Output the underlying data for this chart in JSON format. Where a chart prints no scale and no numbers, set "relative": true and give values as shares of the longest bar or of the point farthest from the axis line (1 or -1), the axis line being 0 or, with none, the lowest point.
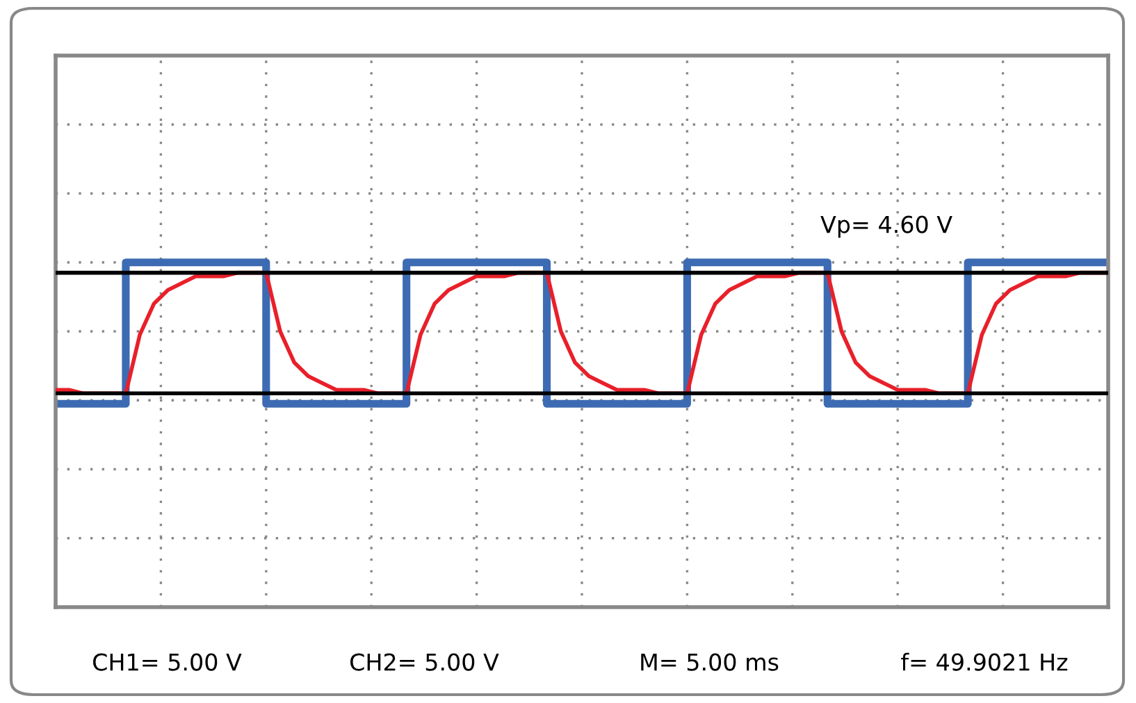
{
  "chart_data": {
    "type": "line",
    "relative": true,
    "grid": true,
    "categories": [
      null,
      null,
      null,
      null,
      null,
      null,
      null,
      null,
      null,
      null,
      null,
      null,
      null,
      null,
      null,
      null,
      null,
      null,
      null,
      null,
      null,
      null,
      null,
      null,
      null,
      null,
      null,
      null,
      null,
      null,
      null,
      null,
      null,
      null,
      null,
      null,
      null,
      null,
      null,
      null,
      null,
      null,
      null,
      null,
      null,
      null,
      null,
      null,
      null,
      null,
      null,
      null,
      null,
      null,
      null,
      null,
      null,
      null,
      null,
      null,
      null,
      null,
      null,
      null,
      null,
      null,
      null,
      null,
      null,
      null,
      null,
      null,
      null,
      null,
      null,
      null
    ],
    "series": [
      {
        "type": "step",
        "color": "#3d6bb3",
        "values": [
          0.59,
          0.59,
          0.59,
          0.59,
          0.59,
          1,
          1,
          1,
          1,
          1,
          1,
          1,
          1,
          1,
          1,
          0.59,
          0.59,
          0.59,
          0.59,
          0.59,
          0.59,
          0.59,
          0.59,
          0.59,
          0.59,
          1,
          1,
          1,
          1,
          1,
          1,
          1,
          1,
          1,
          1,
          0.59,
          0.59,
          0.59,
          0.59,
          0.59,
          0.59,
          0.59,
          0.59,
          0.59,
          0.59,
          1,
          1,
          1,
          1,
          1,
          1,
          1,
          1,
          1,
          1,
          0.59,
          0.59,
          0.59,
          0.59,
          0.59,
          0.59,
          0.59,
          0.59,
          0.59,
          0.59,
          1,
          1,
          1,
          1,
          1,
          1,
          1,
          1,
          1,
          1,
          1
        ]
      },
      {
        "type": "line",
        "color": "#e8202a",
        "values": [
          0.63,
          0.63,
          0.62,
          0.62,
          0.62,
          0.62,
          0.79,
          0.88,
          0.92,
          0.94,
          0.96,
          0.96,
          0.96,
          0.97,
          0.97,
          0.97,
          0.8,
          0.71,
          0.67,
          0.65,
          0.63,
          0.63,
          0.63,
          0.62,
          0.62,
          0.62,
          0.79,
          0.88,
          0.92,
          0.94,
          0.96,
          0.96,
          0.96,
          0.97,
          0.97,
          0.97,
          0.8,
          0.71,
          0.67,
          0.65,
          0.63,
          0.63,
          0.63,
          0.62,
          0.62,
          0.62,
          0.79,
          0.88,
          0.92,
          0.94,
          0.96,
          0.96,
          0.96,
          0.97,
          0.97,
          0.97,
          0.8,
          0.71,
          0.67,
          0.65,
          0.63,
          0.63,
          0.63,
          0.62,
          0.62,
          0.62,
          0.79,
          0.88,
          0.92,
          0.94,
          0.96,
          0.96,
          0.96,
          0.97,
          0.97,
          0.97
        ]
      },
      {
        "color": "#000000",
        "values": [
          0.97,
          0.97,
          0.97,
          0.97,
          0.97,
          0.97,
          0.97,
          0.97,
          0.97,
          0.97,
          0.97,
          0.97,
          0.97,
          0.97,
          0.97,
          0.97,
          0.97,
          0.97,
          0.97,
          0.97,
          0.97,
          0.97,
          0.97,
          0.97,
          0.97,
          0.97,
          0.97,
          0.97,
          0.97,
          0.97,
          0.97,
          0.97,
          0.97,
          0.97,
          0.97,
          0.97,
          0.97,
          0.97,
          0.97,
          0.97,
          0.97,
          0.97,
          0.97,
          0.97,
          0.97,
          0.97,
          0.97,
          0.97,
          0.97,
          0.97,
          0.97,
          0.97,
          0.97,
          0.97,
          0.97,
          0.97,
          0.97,
          0.97,
          0.97,
          0.97,
          0.97,
          0.97,
          0.97,
          0.97,
          0.97,
          0.97,
          0.97,
          0.97,
          0.97,
          0.97,
          0.97,
          0.97,
          0.97,
          0.97,
          0.97,
          0.97
        ]
      },
      {
        "color": "#000000",
        "values": [
          0.62,
          0.62,
          0.62,
          0.62,
          0.62,
          0.62,
          0.62,
          0.62,
          0.62,
          0.62,
          0.62,
          0.62,
          0.62,
          0.62,
          0.62,
          0.62,
          0.62,
          0.62,
          0.62,
          0.62,
          0.62,
          0.62,
          0.62,
          0.62,
          0.62,
          0.62,
          0.62,
          0.62,
          0.62,
          0.62,
          0.62,
          0.62,
          0.62,
          0.62,
          0.62,
          0.62,
          0.62,
          0.62,
          0.62,
          0.62,
          0.62,
          0.62,
          0.62,
          0.62,
          0.62,
          0.62,
          0.62,
          0.62,
          0.62,
          0.62,
          0.62,
          0.62,
          0.62,
          0.62,
          0.62,
          0.62,
          0.62,
          0.62,
          0.62,
          0.62,
          0.62,
          0.62,
          0.62,
          0.62,
          0.62,
          0.62,
          0.62,
          0.62,
          0.62,
          0.62,
          0.62,
          0.62,
          0.62,
          0.62,
          0.62,
          0.62
        ]
      }
    ],
    "annotations": [
      "Vp= 4.60 V",
      "CH1= 5.00 V",
      "CH2= 5.00 V",
      "M= 5.00 ms",
      "f= 49.9021 Hz"
    ]
  }
}
